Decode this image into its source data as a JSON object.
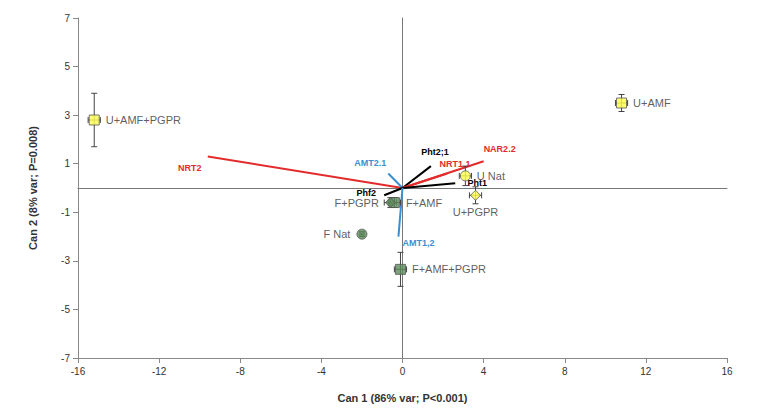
{
  "chart_data": {
    "type": "scatter",
    "x_label": "Can 1 (86% var; P<0.001)",
    "y_label": "Can 2 (8% var; P=0.008)",
    "xlim": [
      -16,
      16
    ],
    "xticks": [
      -16,
      -12,
      -8,
      -4,
      0,
      4,
      8,
      12,
      16
    ],
    "ylim": [
      -7,
      7
    ],
    "yticks": [
      -7,
      -5,
      -3,
      -1,
      1,
      3,
      5,
      7
    ],
    "grid": false,
    "points": [
      {
        "name": "U+AMF+PGPR",
        "x": -15.2,
        "y": 2.8,
        "x_err": 0.3,
        "y_err": 1.1,
        "color": "#ffff4d",
        "marker": "square"
      },
      {
        "name": "U+AMF",
        "x": 10.8,
        "y": 3.5,
        "x_err": 0.3,
        "y_err": 0.35,
        "color": "#ffff4d",
        "marker": "square"
      },
      {
        "name": "U Nat",
        "x": 3.1,
        "y": 0.5,
        "x_err": 0.3,
        "y_err": 0.4,
        "color": "#ffff4d",
        "marker": "circle"
      },
      {
        "name": "U+PGPR",
        "x": 3.6,
        "y": -0.3,
        "x_err": 0.3,
        "y_err": 0.35,
        "color": "#ffff4d",
        "marker": "diamond"
      },
      {
        "name": "F+AMF",
        "x": -0.4,
        "y": -0.6,
        "x_err": 0.3,
        "y_err": 0.2,
        "color": "#5b8c5a",
        "marker": "square"
      },
      {
        "name": "F+PGPR",
        "x": -0.6,
        "y": -0.6,
        "x_err": 0.3,
        "y_err": 0.2,
        "color": "#5b8c5a",
        "marker": "diamond"
      },
      {
        "name": "F Nat",
        "x": -2.0,
        "y": -1.9,
        "x_err": 0.1,
        "y_err": 0.1,
        "color": "#5b8c5a",
        "marker": "circle"
      },
      {
        "name": "F+AMF+PGPR",
        "x": -0.1,
        "y": -3.35,
        "x_err": 0.3,
        "y_err": 0.7,
        "color": "#5b8c5a",
        "marker": "square"
      }
    ],
    "vectors": [
      {
        "name": "NRT2",
        "x": -9.6,
        "y": 1.3,
        "color": "#e32b2b"
      },
      {
        "name": "AMT2.1",
        "x": -0.7,
        "y": 0.6,
        "color": "#3a8fd0"
      },
      {
        "name": "Pht2;1",
        "x": 1.4,
        "y": 0.9,
        "color": "#000000"
      },
      {
        "name": "NRT1.1",
        "x": 2.2,
        "y": 0.6,
        "color": "#e32b2b"
      },
      {
        "name": "NAR2.2",
        "x": 4.0,
        "y": 1.1,
        "color": "#e32b2b"
      },
      {
        "name": "Pht1",
        "x": 2.6,
        "y": 0.2,
        "color": "#000000"
      },
      {
        "name": "Phf2",
        "x": -0.9,
        "y": -0.3,
        "color": "#000000"
      },
      {
        "name": "AMT1,2",
        "x": -0.2,
        "y": -2.0,
        "color": "#3a8fd0"
      }
    ]
  }
}
